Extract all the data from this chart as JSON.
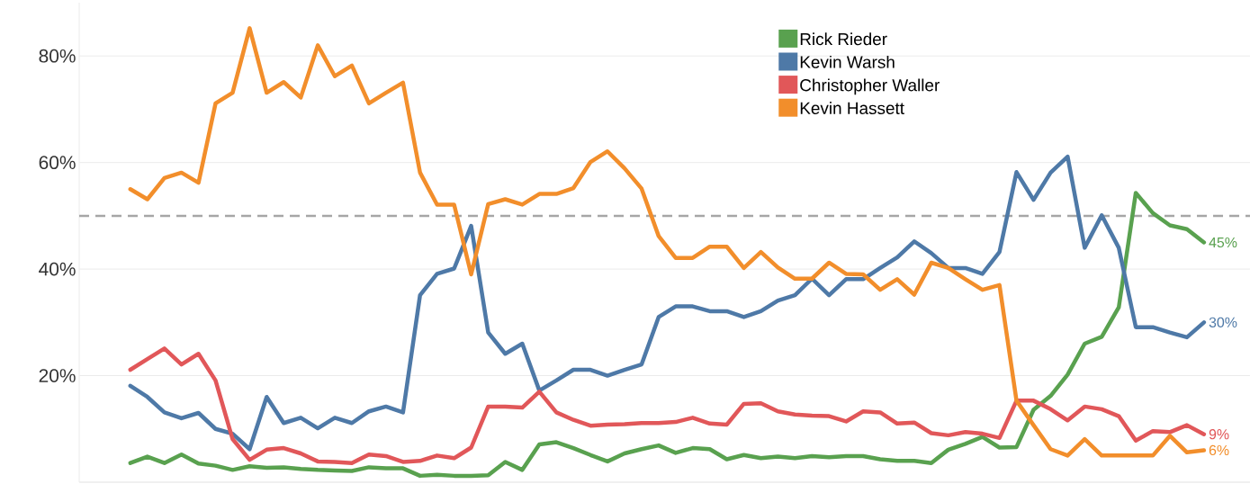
{
  "chart_data": {
    "type": "line",
    "categories": [
      null,
      null,
      null,
      null,
      null,
      null,
      null,
      null,
      null,
      null,
      null,
      null,
      null,
      null,
      null,
      null,
      null,
      null,
      null,
      null,
      null,
      null,
      null,
      null,
      null,
      null,
      null,
      null,
      null,
      null,
      null,
      null,
      null,
      null,
      null,
      null,
      null,
      null,
      null,
      null,
      null,
      null,
      null,
      null,
      null,
      null,
      null,
      null,
      null,
      null,
      null,
      null,
      null,
      null,
      null,
      null,
      null,
      null,
      null,
      null,
      null,
      null,
      null,
      null
    ],
    "series": [
      {
        "name": "Rick Rieder",
        "color": "#59a14f",
        "values": [
          3.6,
          4.8,
          3.6,
          5.2,
          3.5,
          3.1,
          2.3,
          3.0,
          2.7,
          2.8,
          2.5,
          2.3,
          2.2,
          2.1,
          2.8,
          2.6,
          2.6,
          1.2,
          1.4,
          1.2,
          1.2,
          1.3,
          3.8,
          2.3,
          7.1,
          7.5,
          6.4,
          5.1,
          3.9,
          5.4,
          6.2,
          6.9,
          5.5,
          6.4,
          6.2,
          4.3,
          5.1,
          4.5,
          4.8,
          4.5,
          4.9,
          4.7,
          4.9,
          4.9,
          4.3,
          4.0,
          4.0,
          3.6,
          6.1,
          7.2,
          8.5,
          6.5,
          6.6,
          13.6,
          16.2,
          20.2,
          26.0,
          27.3,
          32.8,
          54.3,
          50.5,
          48.2,
          47.5,
          45
        ],
        "value_labels": [
          null,
          null,
          null,
          null,
          null,
          null,
          null,
          null,
          null,
          null,
          null,
          null,
          null,
          null,
          null,
          null,
          null,
          null,
          null,
          null,
          null,
          null,
          null,
          null,
          null,
          null,
          null,
          null,
          null,
          null,
          null,
          null,
          null,
          null,
          null,
          null,
          null,
          null,
          null,
          null,
          null,
          null,
          null,
          null,
          null,
          null,
          null,
          null,
          null,
          null,
          null,
          null,
          null,
          null,
          null,
          null,
          null,
          null,
          null,
          null,
          null,
          null,
          null,
          "45%"
        ]
      },
      {
        "name": "Kevin Warsh",
        "color": "#4e79a7",
        "values": [
          18.1,
          16.0,
          13.1,
          12.0,
          13.0,
          10.0,
          9.1,
          6.2,
          16.0,
          11.1,
          12.1,
          10.1,
          12.1,
          11.1,
          13.3,
          14.2,
          13.1,
          35.1,
          39.1,
          40.1,
          48.1,
          28.1,
          24.1,
          26.0,
          17.2,
          19.1,
          21.1,
          21.1,
          20.0,
          21.1,
          22.1,
          31.0,
          33.0,
          33.0,
          32.1,
          32.1,
          31.0,
          32.1,
          34.1,
          35.1,
          38.2,
          35.1,
          38.1,
          38.1,
          40.2,
          42.2,
          45.2,
          43.0,
          40.2,
          40.2,
          39.1,
          43.2,
          58.2,
          53.0,
          58.1,
          61.1,
          44.0,
          50.1,
          44.0,
          29.1,
          29.1,
          28.1,
          27.2,
          30
        ],
        "value_labels": [
          null,
          null,
          null,
          null,
          null,
          null,
          null,
          null,
          null,
          null,
          null,
          null,
          null,
          null,
          null,
          null,
          null,
          null,
          null,
          null,
          null,
          null,
          null,
          null,
          null,
          null,
          null,
          null,
          null,
          null,
          null,
          null,
          null,
          null,
          null,
          null,
          null,
          null,
          null,
          null,
          null,
          null,
          null,
          null,
          null,
          null,
          null,
          null,
          null,
          null,
          null,
          null,
          null,
          null,
          null,
          null,
          null,
          null,
          null,
          null,
          null,
          null,
          null,
          "30%"
        ]
      },
      {
        "name": "Christopher Waller",
        "color": "#e15759",
        "values": [
          21.1,
          23.1,
          25.1,
          22.1,
          24.1,
          19.1,
          8.1,
          4.2,
          6.1,
          6.4,
          5.4,
          3.9,
          3.8,
          3.6,
          5.2,
          4.9,
          3.8,
          4.0,
          5.0,
          4.5,
          6.5,
          14.2,
          14.2,
          14.0,
          17.0,
          13.1,
          11.7,
          10.6,
          10.8,
          10.9,
          11.1,
          11.1,
          11.3,
          12.1,
          11.0,
          10.8,
          14.7,
          14.8,
          13.3,
          12.7,
          12.5,
          12.4,
          11.4,
          13.3,
          13.1,
          11.0,
          11.2,
          9.2,
          8.8,
          9.4,
          9.1,
          8.3,
          15.3,
          15.3,
          13.7,
          11.6,
          14.2,
          13.7,
          12.4,
          7.8,
          9.6,
          9.4,
          10.7,
          9
        ],
        "value_labels": [
          null,
          null,
          null,
          null,
          null,
          null,
          null,
          null,
          null,
          null,
          null,
          null,
          null,
          null,
          null,
          null,
          null,
          null,
          null,
          null,
          null,
          null,
          null,
          null,
          null,
          null,
          null,
          null,
          null,
          null,
          null,
          null,
          null,
          null,
          null,
          null,
          null,
          null,
          null,
          null,
          null,
          null,
          null,
          null,
          null,
          null,
          null,
          null,
          null,
          null,
          null,
          null,
          null,
          null,
          null,
          null,
          null,
          null,
          null,
          null,
          null,
          null,
          null,
          "9%"
        ]
      },
      {
        "name": "Kevin Hassett",
        "color": "#f28e2b",
        "values": [
          55.0,
          53.1,
          57.1,
          58.1,
          56.2,
          71.1,
          73.1,
          85.2,
          73.1,
          75.1,
          72.2,
          82.0,
          76.2,
          78.2,
          71.1,
          73.1,
          75.0,
          58.1,
          52.1,
          52.1,
          39.0,
          52.2,
          53.1,
          52.1,
          54.1,
          54.1,
          55.2,
          60.1,
          62.1,
          58.9,
          55.1,
          46.2,
          42.1,
          42.1,
          44.2,
          44.2,
          40.2,
          43.2,
          40.3,
          38.2,
          38.2,
          41.2,
          39.1,
          39.0,
          36.1,
          38.1,
          35.2,
          41.2,
          40.2,
          38.1,
          36.1,
          37.0,
          15.3,
          10.7,
          6.2,
          5.0,
          8.1,
          5.0,
          5.0,
          5.0,
          5.0,
          8.7,
          5.6,
          6
        ],
        "value_labels": [
          null,
          null,
          null,
          null,
          null,
          null,
          null,
          null,
          null,
          null,
          null,
          null,
          null,
          null,
          null,
          null,
          null,
          null,
          null,
          null,
          null,
          null,
          null,
          null,
          null,
          null,
          null,
          null,
          null,
          null,
          null,
          null,
          null,
          null,
          null,
          null,
          null,
          null,
          null,
          null,
          null,
          null,
          null,
          null,
          null,
          null,
          null,
          null,
          null,
          null,
          null,
          null,
          null,
          null,
          null,
          null,
          null,
          null,
          null,
          null,
          null,
          null,
          null,
          "6%"
        ]
      }
    ],
    "ylim": [
      0,
      90
    ],
    "yticks": [
      {
        "value": 20,
        "label": "20%"
      },
      {
        "value": 40,
        "label": "40%"
      },
      {
        "value": 60,
        "label": "60%"
      },
      {
        "value": 80,
        "label": "80%"
      }
    ],
    "ref_lines": [
      {
        "axis": "y",
        "value": 50,
        "color": "#a6a6a6",
        "line_style": "dashed"
      }
    ],
    "grid": "y",
    "legend": "top right",
    "marker": "none",
    "line_style": "solid"
  }
}
